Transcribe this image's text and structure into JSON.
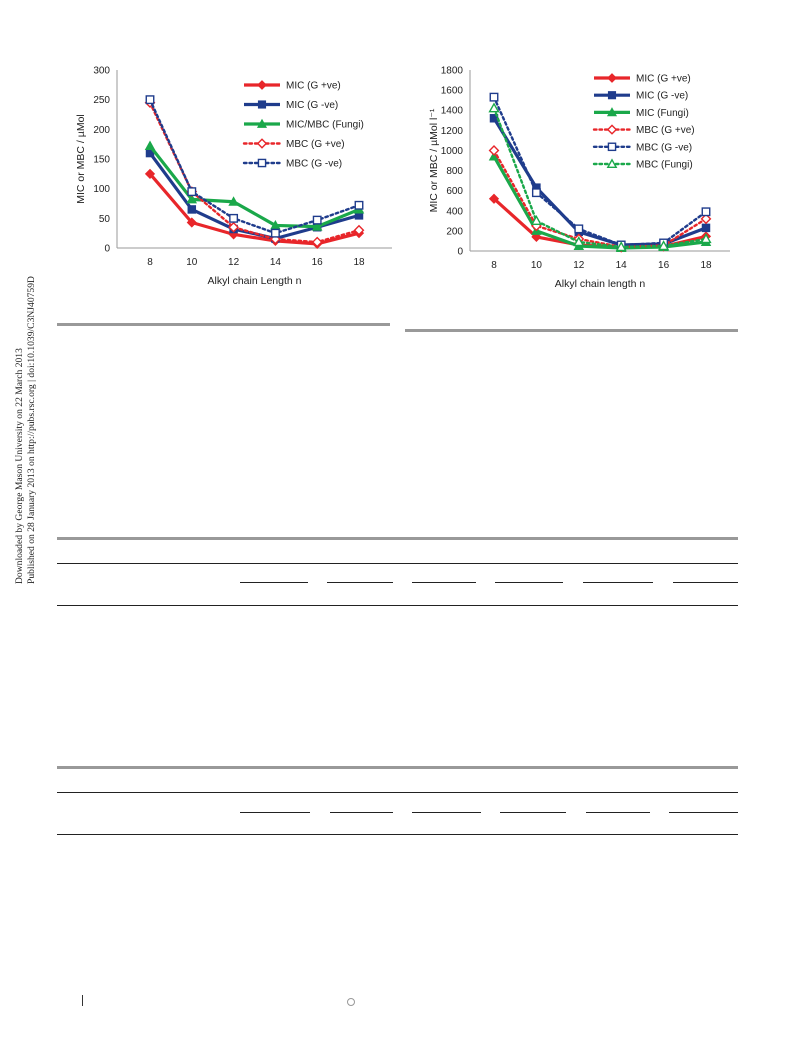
{
  "side_notice": {
    "line1": "Downloaded by George Mason University on 22 March 2013",
    "line2": "Published on 28 January 2013 on http://pubs.rsc.org | doi:10.1039/C3NJ40759D"
  },
  "chart_data": [
    {
      "type": "line",
      "title": "",
      "xlabel": "Alkyl chain Length n",
      "ylabel": "MIC or MBC / µMol",
      "x": [
        8,
        10,
        12,
        14,
        16,
        18
      ],
      "ylim": [
        0,
        300
      ],
      "yticks": [
        0,
        50,
        100,
        150,
        200,
        250,
        300
      ],
      "grid": false,
      "legend": "right",
      "series": [
        {
          "name": "MIC (G +ve)",
          "color": "#e8262a",
          "marker": "diamond",
          "dash": false,
          "values": [
            125,
            43,
            23,
            12,
            7,
            25
          ]
        },
        {
          "name": "MIC (G -ve)",
          "color": "#1f3c8c",
          "marker": "square",
          "dash": false,
          "values": [
            160,
            65,
            32,
            16,
            35,
            55
          ]
        },
        {
          "name": "MIC/MBC (Fungi)",
          "color": "#1aa84a",
          "marker": "triangle",
          "dash": false,
          "values": [
            172,
            82,
            78,
            38,
            36,
            65
          ]
        },
        {
          "name": "MBC (G +ve)",
          "color": "#e8262a",
          "marker": "diamond-open",
          "dash": true,
          "values": [
            245,
            95,
            35,
            15,
            10,
            30
          ]
        },
        {
          "name": "MBC (G -ve)",
          "color": "#1f3c8c",
          "marker": "square-open",
          "dash": true,
          "values": [
            250,
            95,
            50,
            25,
            47,
            72
          ]
        }
      ]
    },
    {
      "type": "line",
      "title": "",
      "xlabel": "Alkyl chain length n",
      "ylabel": "MIC or MBC / µMol l⁻¹",
      "x": [
        8,
        10,
        12,
        14,
        16,
        18
      ],
      "ylim": [
        0,
        1800
      ],
      "yticks": [
        0,
        200,
        400,
        600,
        800,
        1000,
        1200,
        1400,
        1600,
        1800
      ],
      "grid": false,
      "legend": "right",
      "series": [
        {
          "name": "MIC (G +ve)",
          "color": "#e8262a",
          "marker": "diamond",
          "dash": false,
          "values": [
            520,
            140,
            60,
            35,
            45,
            145
          ]
        },
        {
          "name": "MIC (G -ve)",
          "color": "#1f3c8c",
          "marker": "square",
          "dash": false,
          "values": [
            1320,
            630,
            190,
            60,
            70,
            230
          ]
        },
        {
          "name": "MIC (Fungi)",
          "color": "#1aa84a",
          "marker": "triangle",
          "dash": false,
          "values": [
            940,
            200,
            50,
            30,
            40,
            90
          ]
        },
        {
          "name": "MBC (G +ve)",
          "color": "#e8262a",
          "marker": "diamond-open",
          "dash": true,
          "values": [
            1000,
            250,
            120,
            40,
            55,
            320
          ]
        },
        {
          "name": "MBC (G -ve)",
          "color": "#1f3c8c",
          "marker": "square-open",
          "dash": true,
          "values": [
            1530,
            580,
            220,
            60,
            80,
            390
          ]
        },
        {
          "name": "MBC (Fungi)",
          "color": "#1aa84a",
          "marker": "triangle-open",
          "dash": true,
          "values": [
            1420,
            300,
            90,
            40,
            50,
            120
          ]
        }
      ]
    }
  ]
}
